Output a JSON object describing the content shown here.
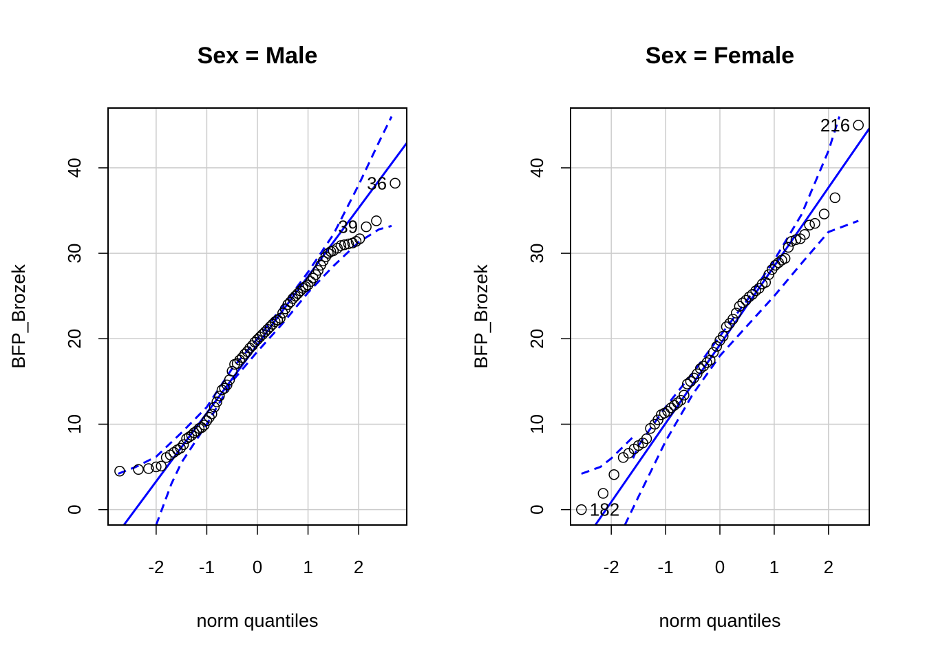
{
  "chart_data": [
    {
      "type": "scatter",
      "subtype": "qq-plot",
      "title": "Sex = Male",
      "xlabel": "norm quantiles",
      "ylabel": "BFP_Brozek",
      "xlim": [
        -2.95,
        2.95
      ],
      "ylim": [
        -1.8,
        47.0
      ],
      "xticks": [
        -2,
        -1,
        0,
        1,
        2
      ],
      "xtick_labels": [
        "-2",
        "-1",
        "0",
        "1",
        "2"
      ],
      "yticks": [
        0,
        10,
        20,
        30,
        40
      ],
      "ytick_labels": [
        "0",
        "10",
        "20",
        "30",
        "40"
      ],
      "grid": true,
      "reference_line": {
        "intercept": 19.3,
        "slope": 8.0,
        "color": "#0000ff",
        "style": "solid"
      },
      "band_upper": {
        "x": [
          -2.75,
          -2.4,
          -2.0,
          -1.5,
          -1.0,
          -0.5,
          0.0,
          0.5,
          1.0,
          1.5,
          2.0,
          2.4,
          2.65
        ],
        "y": [
          4.2,
          5.0,
          6.2,
          9.0,
          12.0,
          16.5,
          20.0,
          23.8,
          27.8,
          32.2,
          38.0,
          43.0,
          46.0
        ],
        "color": "#0000ff",
        "style": "dashed"
      },
      "band_lower": {
        "x": [
          -2.0,
          -1.7,
          -1.5,
          -1.0,
          -0.5,
          0.0,
          0.5,
          1.0,
          1.5,
          2.0,
          2.4,
          2.65
        ],
        "y": [
          -1.8,
          3.0,
          5.5,
          10.0,
          15.0,
          18.5,
          21.8,
          25.4,
          28.5,
          31.3,
          32.8,
          33.2
        ],
        "color": "#0000ff",
        "style": "dashed"
      },
      "points": {
        "x": [
          -2.72,
          -2.35,
          -2.15,
          -2.0,
          -1.9,
          -1.8,
          -1.72,
          -1.65,
          -1.58,
          -1.52,
          -1.46,
          -1.4,
          -1.35,
          -1.3,
          -1.25,
          -1.2,
          -1.15,
          -1.1,
          -1.05,
          -1.0,
          -0.95,
          -0.9,
          -0.85,
          -0.8,
          -0.75,
          -0.7,
          -0.65,
          -0.6,
          -0.55,
          -0.5,
          -0.45,
          -0.4,
          -0.35,
          -0.3,
          -0.25,
          -0.2,
          -0.15,
          -0.1,
          -0.05,
          0.0,
          0.05,
          0.1,
          0.15,
          0.2,
          0.25,
          0.3,
          0.35,
          0.4,
          0.45,
          0.5,
          0.55,
          0.6,
          0.65,
          0.7,
          0.75,
          0.8,
          0.85,
          0.9,
          0.95,
          1.0,
          1.05,
          1.1,
          1.15,
          1.2,
          1.25,
          1.3,
          1.35,
          1.4,
          1.45,
          1.5,
          1.58,
          1.65,
          1.72,
          1.8,
          1.88,
          1.95,
          2.02,
          2.15,
          2.35,
          2.72
        ],
        "y": [
          4.5,
          4.7,
          4.8,
          5.0,
          5.1,
          6.1,
          6.4,
          6.7,
          7.0,
          7.2,
          7.6,
          8.3,
          8.5,
          8.7,
          9.0,
          9.2,
          9.5,
          9.6,
          9.9,
          10.4,
          10.8,
          11.2,
          12.0,
          12.6,
          13.3,
          14.0,
          14.2,
          14.6,
          15.2,
          16.2,
          17.0,
          17.1,
          17.5,
          17.8,
          18.2,
          18.5,
          18.9,
          19.2,
          19.6,
          19.9,
          20.2,
          20.5,
          20.8,
          21.1,
          21.4,
          21.7,
          22.0,
          22.2,
          22.4,
          23.0,
          23.5,
          24.0,
          24.3,
          24.7,
          25.0,
          25.3,
          25.6,
          25.9,
          26.1,
          26.3,
          26.7,
          27.1,
          27.5,
          28.0,
          28.6,
          29.1,
          29.6,
          30.0,
          30.2,
          30.3,
          30.6,
          30.9,
          31.0,
          31.1,
          31.2,
          31.4,
          31.7,
          33.1,
          33.8,
          38.2
        ]
      },
      "labels": [
        {
          "text": "36",
          "x": 2.72,
          "y": 38.2
        },
        {
          "text": "39",
          "x": 2.15,
          "y": 33.1
        }
      ]
    },
    {
      "type": "scatter",
      "subtype": "qq-plot",
      "title": "Sex = Female",
      "xlabel": "norm quantiles",
      "ylabel": "BFP_Brozek",
      "xlim": [
        -2.75,
        2.75
      ],
      "ylim": [
        -1.8,
        47.0
      ],
      "xticks": [
        -2,
        -1,
        0,
        1,
        2
      ],
      "xtick_labels": [
        "-2",
        "-1",
        "0",
        "1",
        "2"
      ],
      "yticks": [
        0,
        10,
        20,
        30,
        40
      ],
      "ytick_labels": [
        "0",
        "10",
        "20",
        "30",
        "40"
      ],
      "grid": true,
      "reference_line": {
        "intercept": 19.3,
        "slope": 9.2,
        "color": "#0000ff",
        "style": "solid"
      },
      "band_upper": {
        "x": [
          -1.6,
          -1.5,
          -1.0,
          -0.5,
          0.0,
          0.5,
          1.0,
          1.5,
          2.0,
          2.2
        ],
        "y": [
          6.0,
          7.5,
          12.0,
          16.0,
          20.3,
          24.5,
          29.2,
          34.5,
          42.0,
          46.0
        ],
        "color": "#0000ff",
        "style": "dashed"
      },
      "band_upper_tail": {
        "x": [
          -2.55,
          -2.2,
          -2.0,
          -1.6
        ],
        "y": [
          4.2,
          5.0,
          6.0,
          8.5
        ],
        "color": "#0000ff",
        "style": "dashed"
      },
      "band_lower": {
        "x": [
          -1.75,
          -1.5,
          -1.0,
          -0.5,
          0.0,
          0.5,
          1.0,
          1.5,
          2.0,
          2.55
        ],
        "y": [
          -1.8,
          1.5,
          8.0,
          13.5,
          18.0,
          21.5,
          25.0,
          28.8,
          32.5,
          33.8
        ],
        "color": "#0000ff",
        "style": "dashed"
      },
      "points": {
        "x": [
          -2.55,
          -2.15,
          -1.95,
          -1.78,
          -1.68,
          -1.58,
          -1.5,
          -1.42,
          -1.35,
          -1.28,
          -1.2,
          -1.14,
          -1.08,
          -1.02,
          -0.96,
          -0.9,
          -0.84,
          -0.78,
          -0.72,
          -0.66,
          -0.6,
          -0.54,
          -0.48,
          -0.42,
          -0.36,
          -0.3,
          -0.24,
          -0.18,
          -0.12,
          -0.06,
          0.0,
          0.06,
          0.12,
          0.18,
          0.24,
          0.3,
          0.36,
          0.42,
          0.48,
          0.54,
          0.6,
          0.66,
          0.72,
          0.78,
          0.84,
          0.9,
          0.96,
          1.02,
          1.08,
          1.14,
          1.2,
          1.26,
          1.32,
          1.4,
          1.48,
          1.56,
          1.65,
          1.75,
          1.92,
          2.12,
          2.55
        ],
        "y": [
          0.0,
          1.9,
          4.1,
          6.1,
          6.6,
          7.1,
          7.5,
          7.8,
          8.3,
          9.5,
          10.0,
          10.5,
          11.1,
          11.3,
          11.5,
          11.9,
          12.2,
          12.5,
          12.8,
          13.4,
          14.7,
          15.0,
          15.4,
          15.9,
          16.5,
          16.8,
          17.2,
          17.5,
          18.4,
          19.1,
          19.8,
          20.3,
          21.4,
          21.8,
          22.3,
          23.0,
          23.8,
          24.2,
          24.5,
          24.9,
          25.2,
          25.6,
          25.9,
          26.4,
          26.6,
          27.5,
          28.1,
          28.6,
          28.9,
          29.2,
          29.4,
          30.7,
          31.4,
          31.6,
          31.7,
          32.2,
          33.3,
          33.5,
          34.6,
          36.5,
          45.0
        ]
      },
      "labels": [
        {
          "text": "216",
          "x": 2.55,
          "y": 45.0
        },
        {
          "text": "182",
          "x": -2.55,
          "y": 0.0
        }
      ]
    }
  ]
}
